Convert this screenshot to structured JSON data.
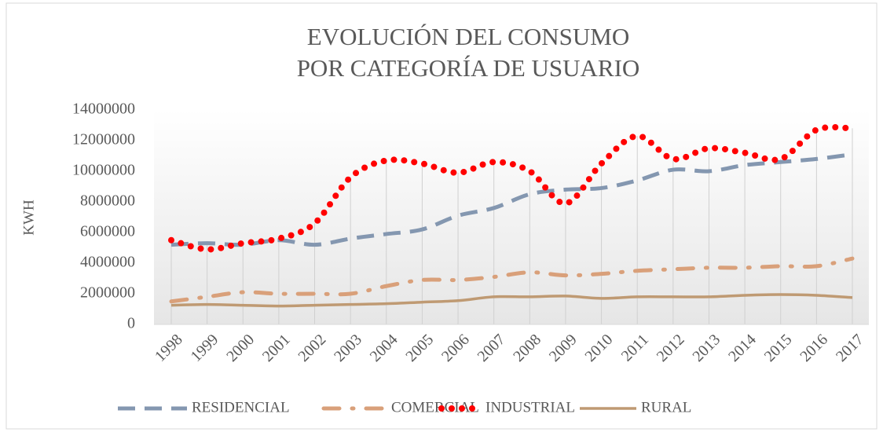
{
  "chart_data": {
    "type": "line",
    "title": [
      "EVOLUCIÓN DEL CONSUMO",
      "POR CATEGORÍA DE USUARIO"
    ],
    "y_label": "KWH",
    "categories": [
      "1998",
      "1999",
      "2000",
      "2001",
      "2002",
      "2003",
      "2004",
      "2005",
      "2006",
      "2007",
      "2008",
      "2009",
      "2010",
      "2011",
      "2012",
      "2013",
      "2014",
      "2015",
      "2016",
      "2017"
    ],
    "series": [
      {
        "name": "RESIDENCIAL",
        "color": "#8497b0",
        "style": "dash",
        "values": [
          5200000,
          5300000,
          5200000,
          5500000,
          5200000,
          5600000,
          5900000,
          6200000,
          7100000,
          7600000,
          8500000,
          8800000,
          8900000,
          9400000,
          10100000,
          10000000,
          10400000,
          10600000,
          10800000,
          11100000
        ]
      },
      {
        "name": "COMERCIAL",
        "color": "#d9a07a",
        "style": "dashdot",
        "values": [
          1500000,
          1800000,
          2100000,
          2000000,
          2000000,
          2000000,
          2500000,
          2900000,
          2900000,
          3100000,
          3400000,
          3200000,
          3300000,
          3500000,
          3600000,
          3700000,
          3700000,
          3800000,
          3800000,
          4300000
        ]
      },
      {
        "name": "INDUSTRIAL",
        "color": "#ff0000",
        "style": "dot",
        "values": [
          5500000,
          4900000,
          5300000,
          5600000,
          6600000,
          9600000,
          10700000,
          10500000,
          9900000,
          10600000,
          10000000,
          7900000,
          10500000,
          12300000,
          10800000,
          11500000,
          11200000,
          10800000,
          12700000,
          12800000
        ]
      },
      {
        "name": "RURAL",
        "color": "#bf9a73",
        "style": "solid",
        "values": [
          1250000,
          1300000,
          1250000,
          1200000,
          1250000,
          1300000,
          1350000,
          1450000,
          1550000,
          1800000,
          1800000,
          1850000,
          1700000,
          1800000,
          1800000,
          1800000,
          1900000,
          1950000,
          1900000,
          1750000
        ]
      }
    ],
    "ylim": [
      0,
      14000000
    ],
    "yticks": [
      0,
      2000000,
      4000000,
      6000000,
      8000000,
      10000000,
      12000000,
      14000000
    ],
    "grid": false,
    "smooth": true,
    "drop_lines": true,
    "legend": "bottom"
  }
}
